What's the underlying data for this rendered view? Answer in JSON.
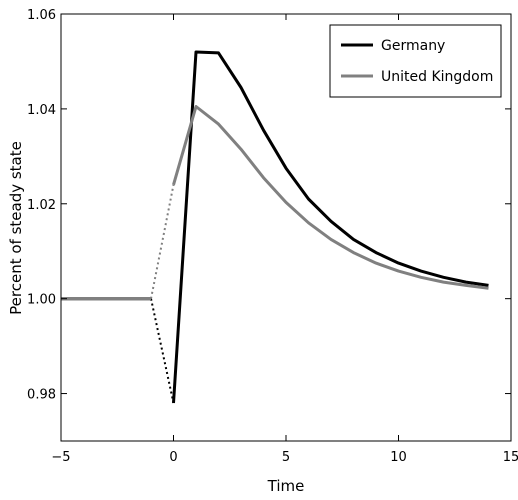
{
  "chart_data": {
    "type": "line",
    "title": "",
    "xlabel": "Time",
    "ylabel": "Percent of steady state",
    "xlim": [
      -5,
      15
    ],
    "ylim": [
      0.97,
      1.06
    ],
    "xticks": [
      -5,
      0,
      5,
      10,
      15
    ],
    "xtick_labels": [
      "−5",
      "0",
      "5",
      "10",
      "15"
    ],
    "yticks": [
      0.98,
      1.0,
      1.02,
      1.04,
      1.06
    ],
    "ytick_labels": [
      "0.98",
      "1.00",
      "1.02",
      "1.04",
      "1.06"
    ],
    "grid": false,
    "legend_position": "top-right",
    "series": [
      {
        "name": "Germany",
        "color": "#000000",
        "pre": [
          [
            -5,
            1.0
          ],
          [
            -1,
            1.0
          ]
        ],
        "jump": [
          [
            -1,
            1.0
          ],
          [
            0,
            0.978
          ]
        ],
        "post": [
          [
            0,
            0.978
          ],
          [
            1,
            1.052
          ],
          [
            2,
            1.0518
          ],
          [
            3,
            1.0445
          ],
          [
            4,
            1.0355
          ],
          [
            5,
            1.0275
          ],
          [
            6,
            1.021
          ],
          [
            7,
            1.0163
          ],
          [
            8,
            1.0125
          ],
          [
            9,
            1.0097
          ],
          [
            10,
            1.0075
          ],
          [
            11,
            1.0058
          ],
          [
            12,
            1.0045
          ],
          [
            13,
            1.0035
          ],
          [
            14,
            1.0028
          ]
        ]
      },
      {
        "name": "United Kingdom",
        "color": "#808080",
        "pre": [
          [
            -5,
            1.0
          ],
          [
            -1,
            1.0
          ]
        ],
        "jump": [
          [
            -1,
            1.0
          ],
          [
            0,
            1.024
          ]
        ],
        "post": [
          [
            0,
            1.024
          ],
          [
            1,
            1.0405
          ],
          [
            2,
            1.0368
          ],
          [
            3,
            1.0315
          ],
          [
            4,
            1.0255
          ],
          [
            5,
            1.0203
          ],
          [
            6,
            1.016
          ],
          [
            7,
            1.0125
          ],
          [
            8,
            1.0097
          ],
          [
            9,
            1.0075
          ],
          [
            10,
            1.0058
          ],
          [
            11,
            1.0045
          ],
          [
            12,
            1.0035
          ],
          [
            13,
            1.0028
          ],
          [
            14,
            1.0022
          ]
        ]
      }
    ]
  }
}
